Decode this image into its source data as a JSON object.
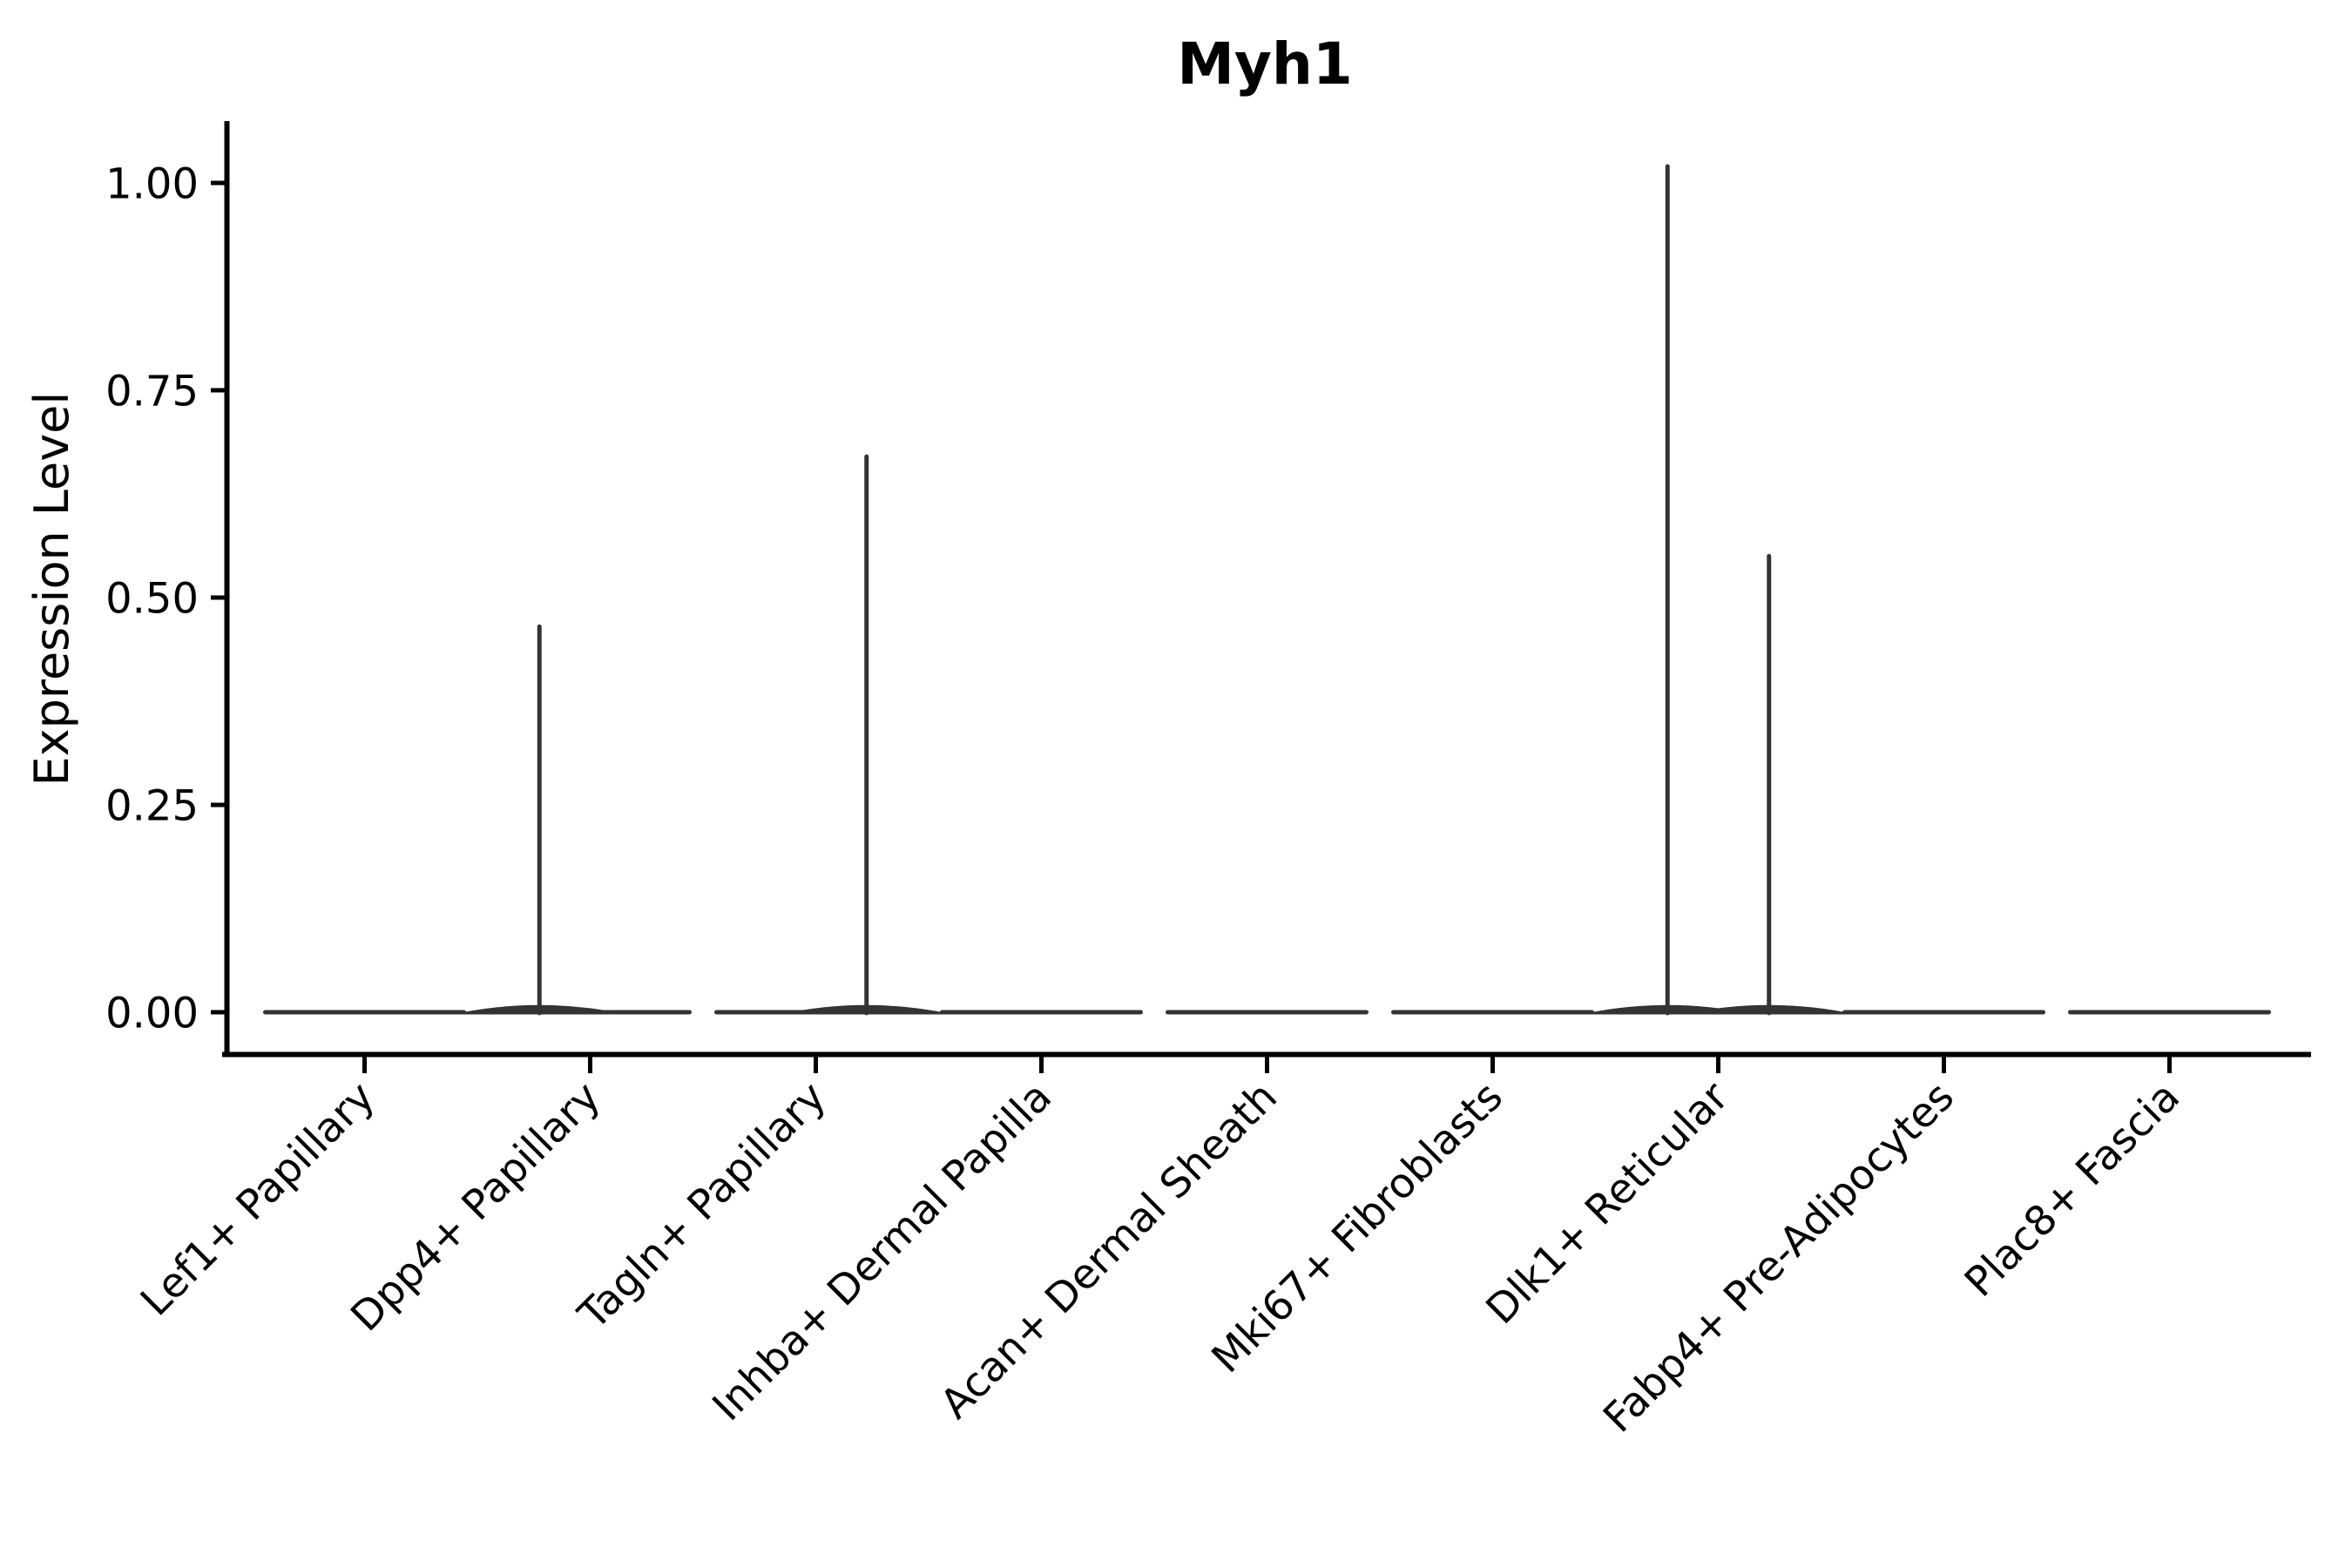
{
  "chart_data": {
    "type": "violin",
    "title": "Myh1",
    "xlabel": "",
    "ylabel": "Expression Level",
    "ylim": [
      -0.05,
      1.07
    ],
    "y_ticks": [
      0.0,
      0.25,
      0.5,
      0.75,
      1.0
    ],
    "y_tick_labels": [
      "0.00",
      "0.25",
      "0.50",
      "0.75",
      "1.00"
    ],
    "categories": [
      "Lef1+ Papillary",
      "Dpp4+ Papillary",
      "Tagln+ Papillary",
      "Inhba+ Dermal Papilla",
      "Acan+ Dermal Sheath",
      "Mki67+ Fibroblasts",
      "Dlk1+ Reticular",
      "Fabp4+ Pre-Adipocytes",
      "Plac8+ Fascia"
    ],
    "baseline_value": 0,
    "spikes": [
      {
        "category": "Dpp4+ Papillary",
        "side": "left",
        "value": 0.465
      },
      {
        "category": "Tagln+ Papillary",
        "side": "right",
        "value": 0.67
      },
      {
        "category": "Dlk1+ Reticular",
        "side": "left",
        "value": 1.02
      },
      {
        "category": "Dlk1+ Reticular",
        "side": "right",
        "value": 0.55
      }
    ],
    "legend": "none",
    "grid": "off",
    "colors": {
      "violin_outline": "#333333",
      "axis": "#000000",
      "text": "#000000",
      "background": "#ffffff"
    }
  }
}
